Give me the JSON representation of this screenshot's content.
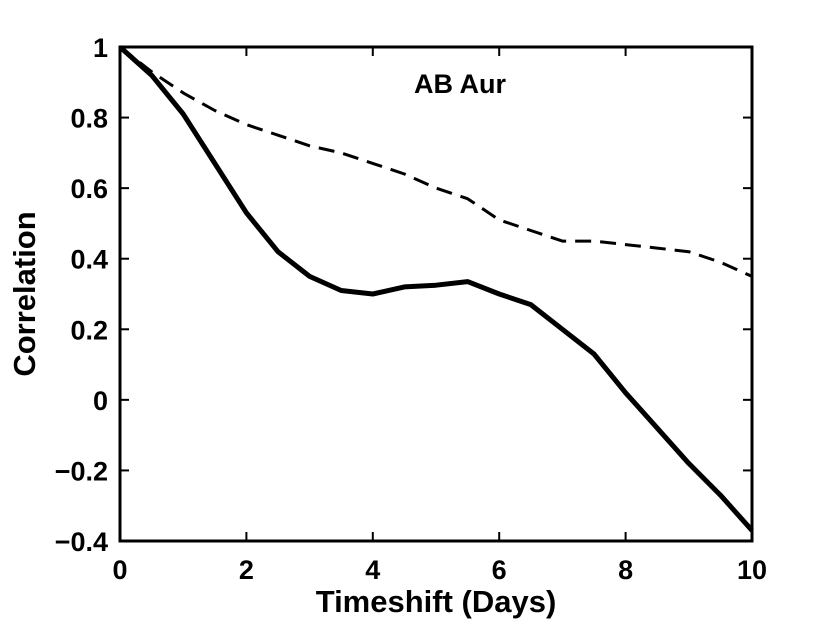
{
  "chart_data": {
    "type": "line",
    "title": "AB Aur",
    "xlabel": "Timeshift (Days)",
    "ylabel": "Correlation",
    "xlim": [
      0,
      10
    ],
    "ylim": [
      -0.4,
      1
    ],
    "xticks": [
      0,
      2,
      4,
      6,
      8,
      10
    ],
    "yticks": [
      1,
      0.8,
      0.6,
      0.4,
      0.2,
      0,
      -0.2,
      -0.4
    ],
    "xtick_labels": [
      "0",
      "2",
      "4",
      "6",
      "8",
      "10"
    ],
    "ytick_labels": [
      "1",
      "0.8",
      "0.6",
      "0.4",
      "0.2",
      "0",
      "−0.2",
      "−0.4"
    ],
    "grid": false,
    "series": [
      {
        "style": "solid",
        "color": "#000000",
        "x": [
          0,
          0.5,
          1.0,
          1.5,
          2.0,
          2.5,
          3.0,
          3.5,
          4.0,
          4.5,
          5.0,
          5.5,
          6.0,
          6.5,
          7.0,
          7.5,
          8.0,
          8.5,
          9.0,
          9.5,
          10.0
        ],
        "y": [
          1.0,
          0.92,
          0.81,
          0.67,
          0.53,
          0.42,
          0.35,
          0.31,
          0.3,
          0.32,
          0.325,
          0.335,
          0.3,
          0.27,
          0.2,
          0.13,
          0.02,
          -0.08,
          -0.18,
          -0.27,
          -0.37
        ]
      },
      {
        "style": "dashed",
        "color": "#000000",
        "x": [
          0,
          0.5,
          1.0,
          1.5,
          2.0,
          2.5,
          3.0,
          3.5,
          4.0,
          4.5,
          5.0,
          5.5,
          6.0,
          6.5,
          7.0,
          7.5,
          8.0,
          8.5,
          9.0,
          9.5,
          10.0
        ],
        "y": [
          1.0,
          0.93,
          0.87,
          0.82,
          0.78,
          0.75,
          0.72,
          0.7,
          0.67,
          0.64,
          0.6,
          0.57,
          0.51,
          0.48,
          0.45,
          0.45,
          0.44,
          0.43,
          0.42,
          0.39,
          0.35
        ]
      }
    ]
  }
}
